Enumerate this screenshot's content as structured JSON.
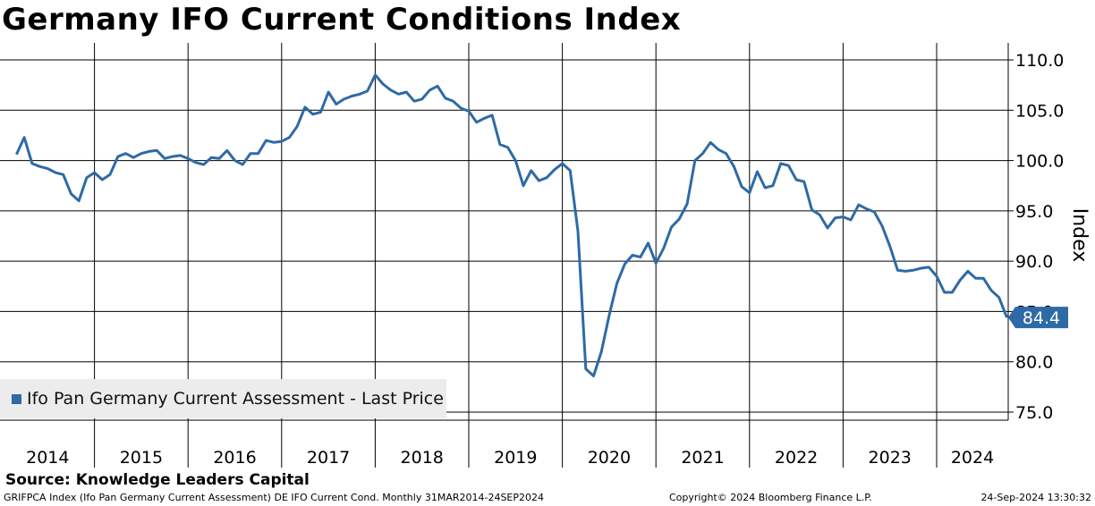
{
  "colors": {
    "series": "#2e6aa6",
    "grid": "#000000",
    "text": "#000000",
    "legend_bg": "#ececec"
  },
  "chart_data": {
    "type": "line",
    "title": "Germany IFO Current Conditions Index",
    "ylabel": "Index",
    "xlabel": "",
    "ylim": [
      75,
      110
    ],
    "yticks": [
      75.0,
      80.0,
      85.0,
      90.0,
      95.0,
      100.0,
      105.0,
      110.0
    ],
    "ytick_labels": [
      "75.0",
      "80.0",
      "85.0",
      "90.0",
      "95.0",
      "100.0",
      "105.0",
      "110.0"
    ],
    "x_start": "2014-03",
    "x_range_years": [
      2014,
      2024.92
    ],
    "x_labels": [
      "2014",
      "2015",
      "2016",
      "2017",
      "2018",
      "2019",
      "2020",
      "2021",
      "2022",
      "2023",
      "2024"
    ],
    "grid": true,
    "legend": "bottom-left",
    "last_value_label": "84.4",
    "series": [
      {
        "name": "Ifo Pan Germany Current Assessment - Last Price",
        "frequency": "monthly",
        "values": [
          100.6,
          102.3,
          99.7,
          99.4,
          99.2,
          98.8,
          98.6,
          96.7,
          96.0,
          98.3,
          98.8,
          98.1,
          98.6,
          100.4,
          100.7,
          100.3,
          100.7,
          100.9,
          101.0,
          100.2,
          100.4,
          100.5,
          100.2,
          99.8,
          99.6,
          100.3,
          100.2,
          101.0,
          100.0,
          99.6,
          100.7,
          100.7,
          102.0,
          101.8,
          101.9,
          102.3,
          103.4,
          105.3,
          104.6,
          104.8,
          106.8,
          105.6,
          106.1,
          106.4,
          106.6,
          106.9,
          108.5,
          107.6,
          107.0,
          106.6,
          106.8,
          105.9,
          106.1,
          107.0,
          107.4,
          106.2,
          105.9,
          105.2,
          104.9,
          103.8,
          104.2,
          104.5,
          101.6,
          101.3,
          100.0,
          97.5,
          99.0,
          98.0,
          98.3,
          99.1,
          99.7,
          99.0,
          93.0,
          79.3,
          78.6,
          81.0,
          84.6,
          87.8,
          89.7,
          90.6,
          90.4,
          91.8,
          89.8,
          91.3,
          93.4,
          94.2,
          95.7,
          100.0,
          100.7,
          101.8,
          101.1,
          100.7,
          99.4,
          97.4,
          96.8,
          98.9,
          97.3,
          97.5,
          99.7,
          99.5,
          98.1,
          97.9,
          95.1,
          94.6,
          93.3,
          94.3,
          94.4,
          94.1,
          95.6,
          95.2,
          94.9,
          93.5,
          91.5,
          89.1,
          89.0,
          89.1,
          89.3,
          89.4,
          88.5,
          86.9,
          86.9,
          88.1,
          89.0,
          88.3,
          88.3,
          87.1,
          86.4,
          84.4
        ]
      }
    ]
  },
  "footer": {
    "source": "Source: Knowledge Leaders Capital",
    "left": "GRIFPCA Index (Ifo Pan Germany Current Assessment) DE IFO Current Cond.  Monthly 31MAR2014-24SEP2024",
    "middle": "Copyright© 2024 Bloomberg Finance L.P.",
    "right": "24-Sep-2024 13:30:32"
  }
}
